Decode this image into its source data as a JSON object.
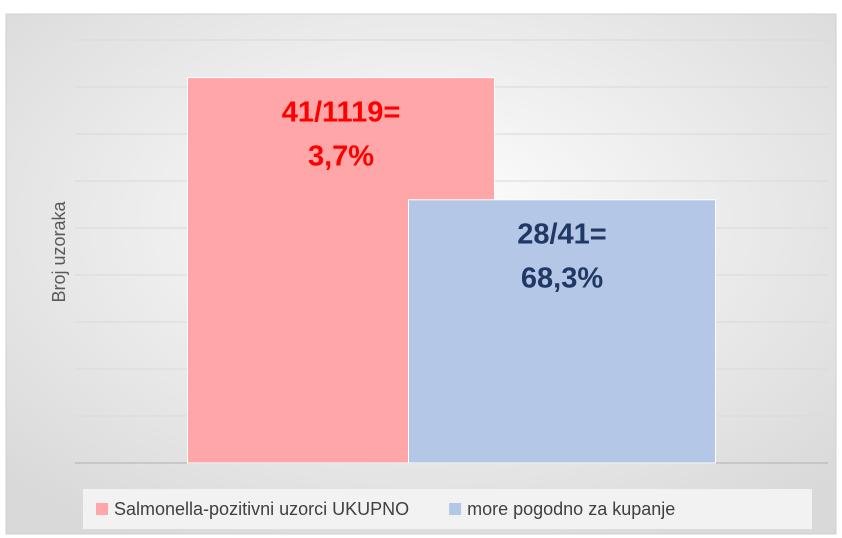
{
  "chart_data": {
    "type": "bar",
    "y_label": "Broj uzoraka",
    "categories": [
      null
    ],
    "series": [
      {
        "name": "Salmonella-pozitivni uzorci UKUPNO",
        "color": "#ffa6a9",
        "label_color": "#ff0000",
        "values": [
          41
        ],
        "value_labels": [
          [
            "41/1119=",
            "3,7%"
          ]
        ]
      },
      {
        "name": "more pogodno za kupanje",
        "color": "#b4c7e7",
        "label_color": "#1f3864",
        "values": [
          28
        ],
        "value_labels": [
          [
            "28/41=",
            "68,3%"
          ]
        ]
      }
    ],
    "ylim": [
      0,
      45
    ],
    "yticks": [
      0,
      5,
      10,
      15,
      20,
      25,
      30,
      35,
      40,
      45
    ],
    "grid": true,
    "legend": "bottom"
  }
}
